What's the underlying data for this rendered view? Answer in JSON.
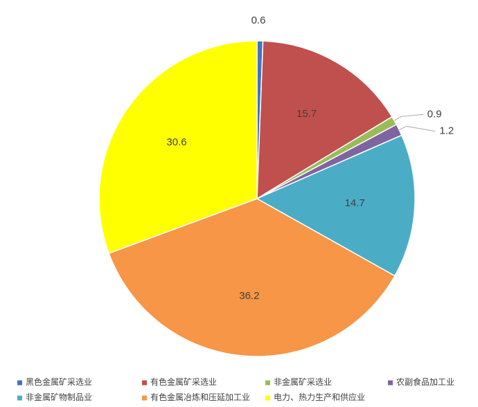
{
  "chart_data": {
    "type": "pie",
    "categories": [
      "黑色金属矿采选业",
      "有色金属矿采选业",
      "非金属矿采选业",
      "农副食品加工业",
      "非金属矿物制品业",
      "有色金属冶炼和压延加工业",
      "电力、热力生产和供应业"
    ],
    "values": [
      0.6,
      15.7,
      0.9,
      1.2,
      14.7,
      36.2,
      30.6
    ],
    "colors": [
      "#4472c4",
      "#c0504d",
      "#9bbb59",
      "#8064a2",
      "#4bacc6",
      "#f79646",
      "#ffff00"
    ]
  }
}
